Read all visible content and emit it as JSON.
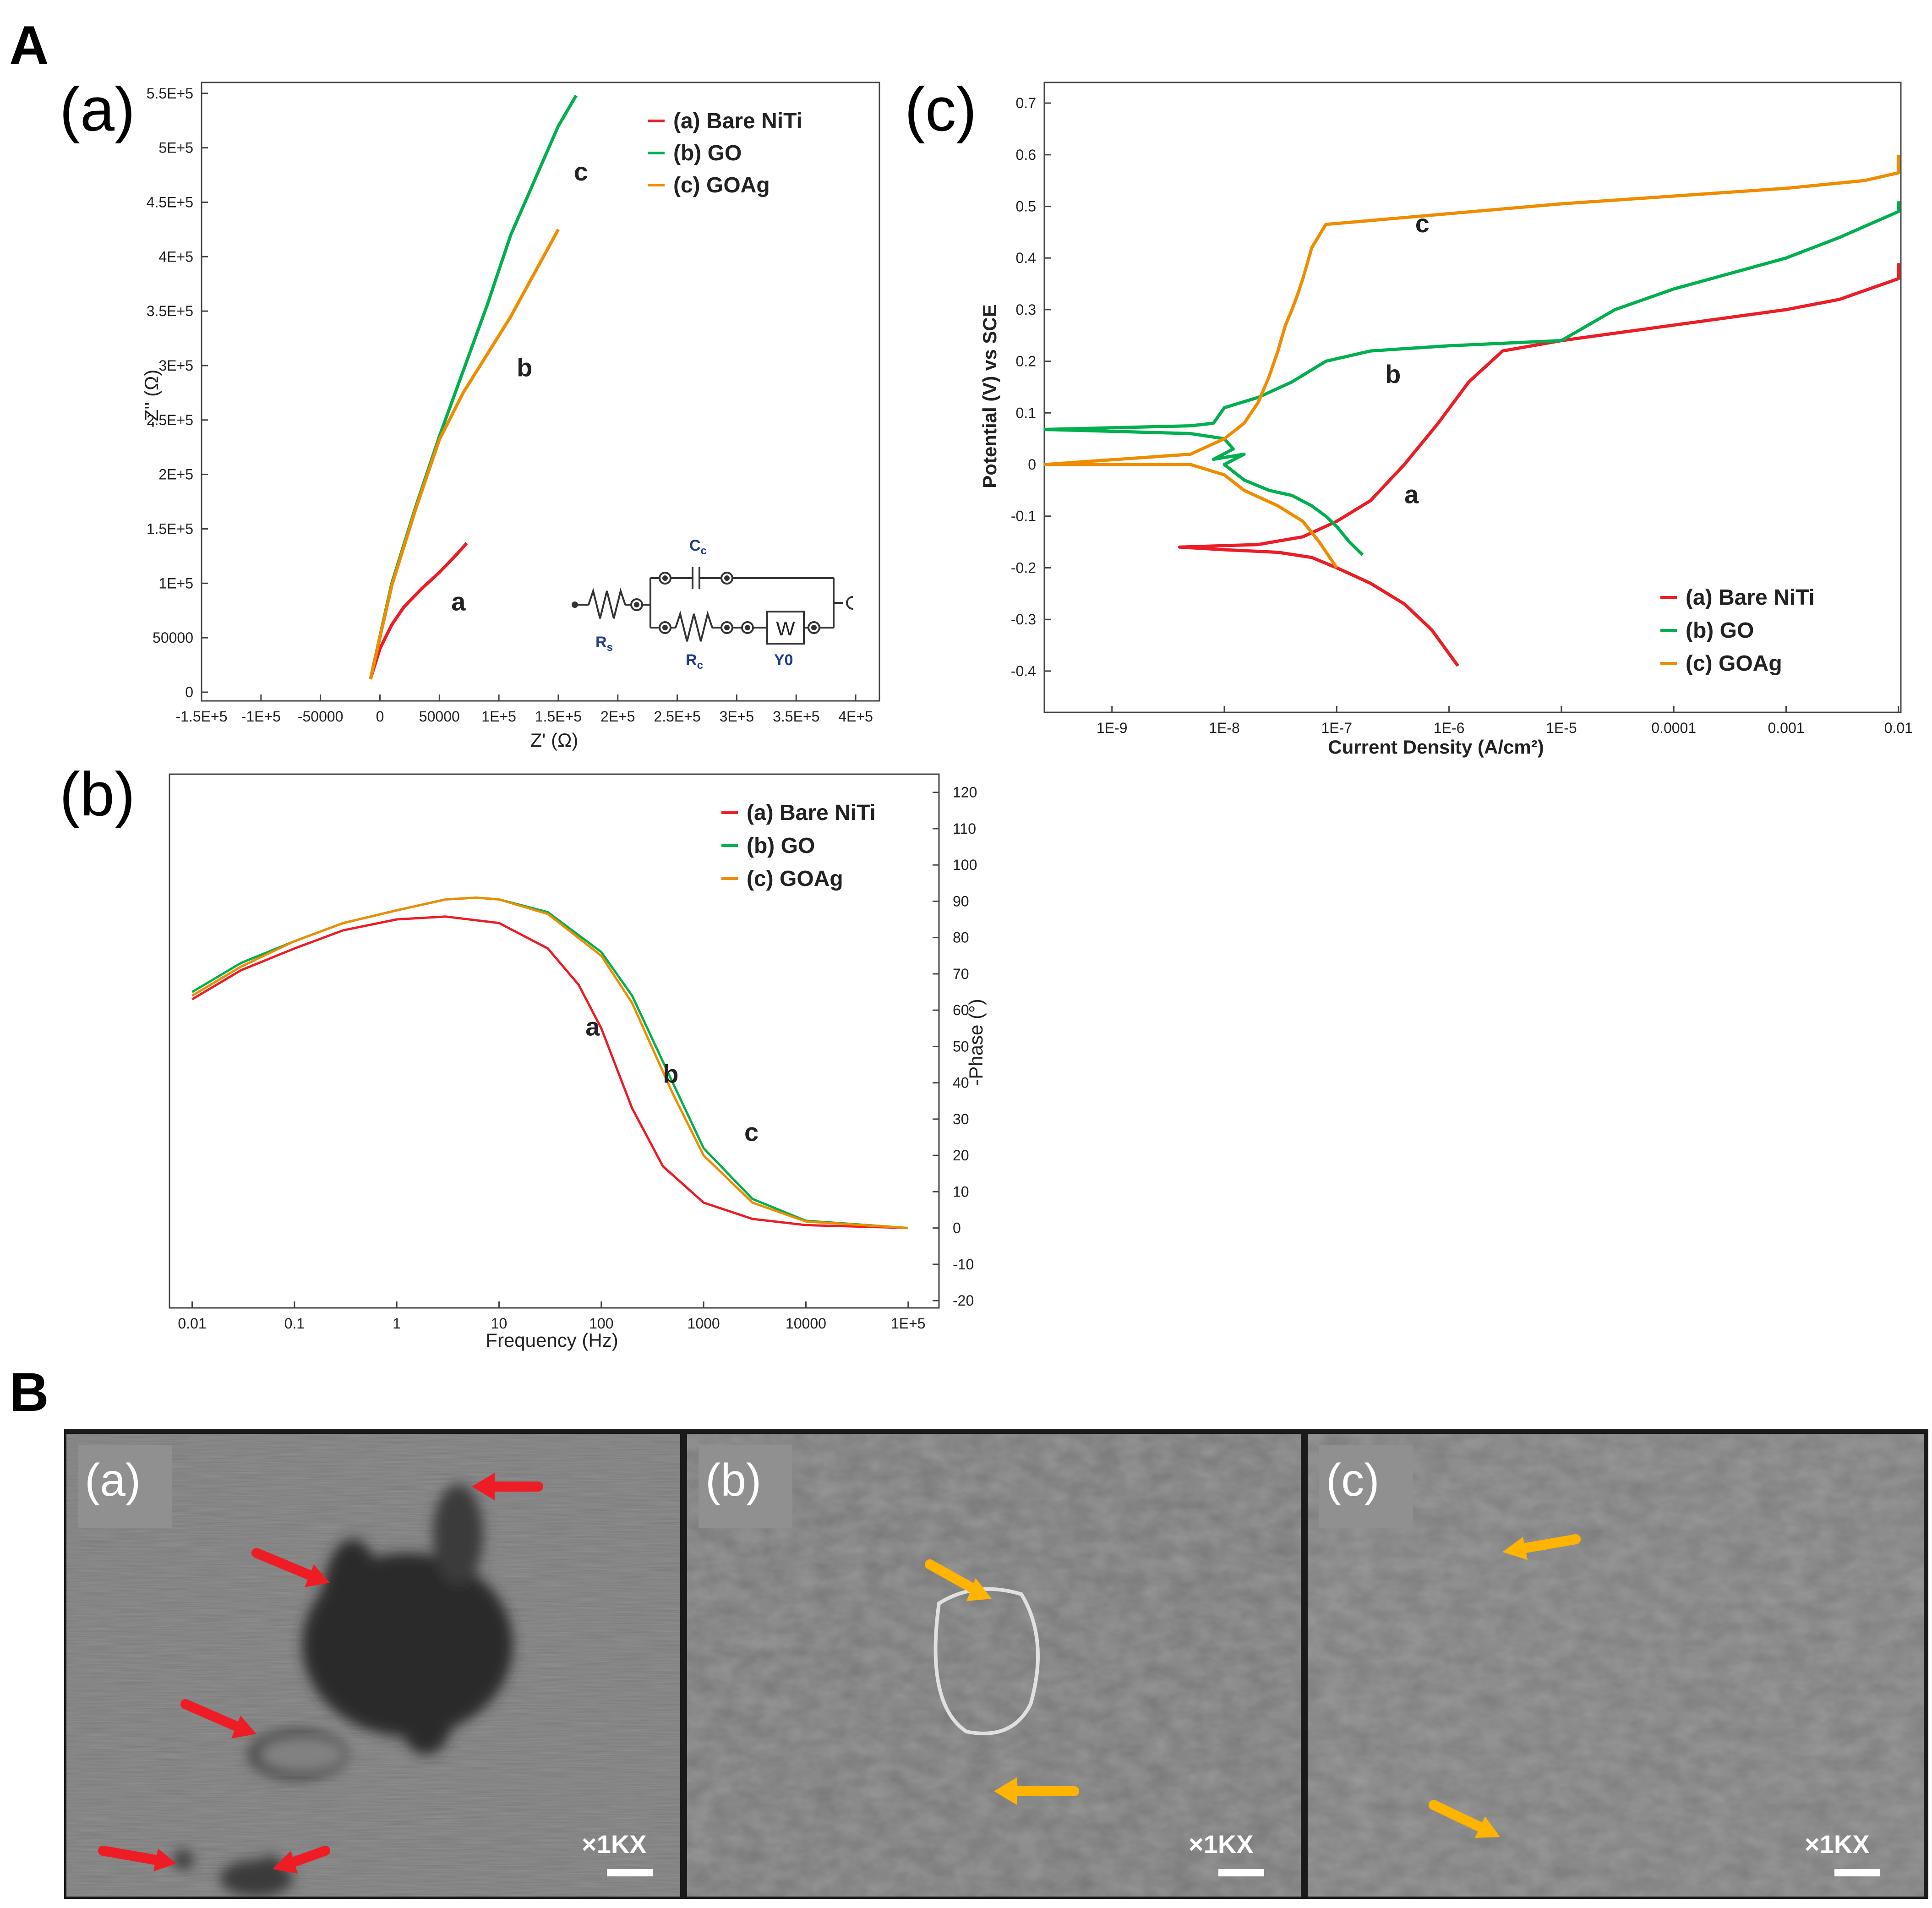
{
  "figure": {
    "panel_A_label": "A",
    "panel_B_label": "B"
  },
  "colors": {
    "a": "#ee1c25",
    "b": "#00b04f",
    "c": "#f08c00",
    "yellow_arrow": "#ffb400"
  },
  "chart_data": [
    {
      "id": "nyquist",
      "type": "line",
      "panel_label": "(a)",
      "xlabel": "Z' (Ω)",
      "ylabel": "-Z'' (Ω)",
      "xlim": [
        -150000,
        420000
      ],
      "ylim": [
        -8000,
        560000
      ],
      "x_ticks": [
        -150000,
        -100000,
        -50000,
        0,
        50000,
        100000,
        150000,
        200000,
        250000,
        300000,
        350000,
        400000
      ],
      "x_tick_labels": [
        "-1.5E+5",
        "-1E+5",
        "-50000",
        "0",
        "50000",
        "1E+5",
        "1.5E+5",
        "2E+5",
        "2.5E+5",
        "3E+5",
        "3.5E+5",
        "4E+5"
      ],
      "y_ticks": [
        0,
        50000,
        100000,
        150000,
        200000,
        250000,
        300000,
        350000,
        400000,
        450000,
        500000,
        550000
      ],
      "y_tick_labels": [
        "0",
        "50000",
        "1E+5",
        "1.5E+5",
        "2E+5",
        "2.5E+5",
        "3E+5",
        "3.5E+5",
        "4E+5",
        "4.5E+5",
        "5E+5",
        "5.5E+5"
      ],
      "legend": [
        "(a) Bare NiTi",
        "(b) GO",
        "(c) GOAg"
      ],
      "series": [
        {
          "key": "a",
          "name": "(a) Bare NiTi",
          "x": [
            -8000,
            0,
            10000,
            20000,
            35000,
            50000,
            65000,
            73000
          ],
          "y": [
            12000,
            40000,
            62000,
            78000,
            95000,
            110000,
            127000,
            137000
          ]
        },
        {
          "key": "b",
          "name": "(b) GO",
          "x": [
            -8000,
            10000,
            30000,
            50000,
            70000,
            90000,
            110000,
            130000,
            150000,
            165000
          ],
          "y": [
            12000,
            100000,
            170000,
            235000,
            295000,
            355000,
            420000,
            470000,
            520000,
            548000
          ]
        },
        {
          "key": "c",
          "name": "(c) GOAg",
          "x": [
            -8000,
            10000,
            30000,
            50000,
            70000,
            90000,
            110000,
            130000,
            150000
          ],
          "y": [
            12000,
            98000,
            168000,
            232000,
            275000,
            310000,
            345000,
            385000,
            425000
          ]
        }
      ],
      "curve_labels": [
        {
          "text": "a",
          "x": 60000,
          "y": 75000
        },
        {
          "text": "b",
          "x": 115000,
          "y": 290000
        },
        {
          "text": "c",
          "x": 163000,
          "y": 470000
        }
      ],
      "circuit": {
        "Cc": "C",
        "Cc_sub": "c",
        "Rs": "R",
        "Rs_sub": "s",
        "Rc": "R",
        "Rc_sub": "c",
        "W": "W",
        "Y0": "Y0"
      }
    },
    {
      "id": "bode",
      "type": "line",
      "panel_label": "(b)",
      "xlabel": "Frequency (Hz)",
      "ylabel": "-Phase (°)",
      "xscale": "log",
      "xlim": [
        0.006,
        200000
      ],
      "ylim": [
        -22,
        125
      ],
      "x_ticks": [
        0.01,
        0.1,
        1,
        10,
        100,
        1000,
        10000,
        100000
      ],
      "x_tick_labels": [
        "0.01",
        "0.1",
        "1",
        "10",
        "100",
        "1000",
        "10000",
        "1E+5"
      ],
      "y_ticks": [
        -20,
        -10,
        0,
        10,
        20,
        30,
        40,
        50,
        60,
        70,
        80,
        90,
        100,
        110,
        120
      ],
      "y_tick_labels": [
        "-20",
        "-10",
        "0",
        "10",
        "20",
        "30",
        "40",
        "50",
        "60",
        "70",
        "80",
        "90",
        "100",
        "110",
        "120"
      ],
      "legend": [
        "(a) Bare NiTi",
        "(b) GO",
        "(c) GOAg"
      ],
      "series": [
        {
          "key": "a",
          "name": "(a) Bare NiTi",
          "x": [
            0.01,
            0.03,
            0.1,
            0.3,
            1,
            3,
            10,
            30,
            60,
            100,
            200,
            400,
            1000,
            3000,
            10000,
            100000
          ],
          "y": [
            63,
            71,
            77,
            82,
            85,
            85.8,
            84,
            77,
            67,
            55,
            33,
            17,
            7,
            2.5,
            0.8,
            0
          ]
        },
        {
          "key": "b",
          "name": "(b) GO",
          "x": [
            0.01,
            0.03,
            0.1,
            0.3,
            1,
            3,
            6,
            10,
            30,
            100,
            200,
            500,
            1000,
            3000,
            10000,
            100000
          ],
          "y": [
            65,
            73,
            79,
            84,
            87.5,
            90.5,
            91,
            90.5,
            87,
            76,
            64,
            40,
            22,
            8,
            2,
            0
          ]
        },
        {
          "key": "c",
          "name": "(c) GOAg",
          "x": [
            0.01,
            0.03,
            0.1,
            0.3,
            1,
            3,
            6,
            10,
            30,
            100,
            200,
            500,
            1000,
            3000,
            10000,
            100000
          ],
          "y": [
            64,
            72,
            79,
            84,
            87.5,
            90.5,
            91,
            90.5,
            86.5,
            75,
            62,
            37,
            20,
            7,
            1.8,
            0
          ]
        }
      ],
      "curve_labels": [
        {
          "text": "a",
          "x": 70,
          "y": 53
        },
        {
          "text": "b",
          "x": 400,
          "y": 40
        },
        {
          "text": "c",
          "x": 2500,
          "y": 24
        }
      ]
    },
    {
      "id": "tafel",
      "type": "line",
      "panel_label": "(c)",
      "xlabel": "Current Density (A/cm²)",
      "ylabel": "Potential (V) vs SCE",
      "xscale": "log",
      "xlim": [
        2.5e-10,
        0.0105
      ],
      "ylim": [
        -0.48,
        0.74
      ],
      "x_ticks": [
        1e-09,
        1e-08,
        1e-07,
        1e-06,
        1e-05,
        0.0001,
        0.001,
        0.01
      ],
      "x_tick_labels": [
        "1E-9",
        "1E-8",
        "1E-7",
        "1E-6",
        "1E-5",
        "0.0001",
        "0.001",
        "0.01"
      ],
      "y_ticks": [
        -0.4,
        -0.3,
        -0.2,
        -0.1,
        0,
        0.1,
        0.2,
        0.3,
        0.4,
        0.5,
        0.6,
        0.7
      ],
      "y_tick_labels": [
        "-0.4",
        "-0.3",
        "-0.2",
        "-0.1",
        "0",
        "0.1",
        "0.2",
        "0.3",
        "0.4",
        "0.5",
        "0.6",
        "0.7"
      ],
      "legend": [
        "(a) Bare NiTi",
        "(b) GO",
        "(c) GOAg"
      ],
      "series": [
        {
          "key": "a",
          "name": "(a) Bare NiTi",
          "x": [
            1.2e-06,
            7e-07,
            4e-07,
            2e-07,
            1e-07,
            6e-08,
            3e-08,
            1e-08,
            4e-09,
            2e-08,
            5e-08,
            1e-07,
            2e-07,
            4e-07,
            8e-07,
            1.5e-06,
            3e-06,
            1e-05,
            0.0001,
            0.001,
            0.003,
            0.01,
            0.01
          ],
          "y": [
            -0.39,
            -0.32,
            -0.27,
            -0.23,
            -0.2,
            -0.18,
            -0.17,
            -0.165,
            -0.16,
            -0.155,
            -0.14,
            -0.11,
            -0.07,
            0.0,
            0.08,
            0.16,
            0.22,
            0.24,
            0.27,
            0.3,
            0.32,
            0.36,
            0.39
          ]
        },
        {
          "key": "b",
          "name": "(b) GO",
          "x": [
            1.7e-07,
            1.3e-07,
            1e-07,
            8e-08,
            6e-08,
            4e-08,
            2.5e-08,
            1.5e-08,
            1e-08,
            1.5e-08,
            8e-09,
            1.2e-08,
            1e-08,
            5e-09,
            2.5e-10,
            5e-09,
            8e-09,
            1e-08,
            2e-08,
            4e-08,
            8e-08,
            2e-07,
            1e-06,
            1e-05,
            3e-05,
            0.0001,
            0.001,
            0.003,
            0.01,
            0.01
          ],
          "y": [
            -0.175,
            -0.15,
            -0.12,
            -0.1,
            -0.08,
            -0.06,
            -0.05,
            -0.03,
            0.0,
            0.02,
            0.01,
            0.03,
            0.05,
            0.06,
            0.068,
            0.075,
            0.08,
            0.11,
            0.13,
            0.16,
            0.2,
            0.22,
            0.23,
            0.24,
            0.3,
            0.34,
            0.4,
            0.44,
            0.49,
            0.51
          ]
        },
        {
          "key": "c",
          "name": "(c) GOAg",
          "x": [
            1e-07,
            7e-08,
            5e-08,
            3e-08,
            1.5e-08,
            1e-08,
            5e-09,
            2.5e-10,
            5e-09,
            1e-08,
            1.5e-08,
            2e-08,
            2.5e-08,
            3e-08,
            3.5e-08,
            4e-08,
            4.5e-08,
            5e-08,
            6e-08,
            8e-08,
            1e-05,
            0.0001,
            0.001,
            0.005,
            0.01,
            0.01
          ],
          "y": [
            -0.2,
            -0.15,
            -0.11,
            -0.08,
            -0.05,
            -0.02,
            0.0,
            0.0,
            0.02,
            0.05,
            0.08,
            0.12,
            0.17,
            0.22,
            0.27,
            0.3,
            0.33,
            0.36,
            0.42,
            0.465,
            0.505,
            0.52,
            0.535,
            0.55,
            0.565,
            0.6
          ]
        }
      ],
      "curve_labels": [
        {
          "text": "a",
          "x": 4e-07,
          "y": -0.075
        },
        {
          "text": "b",
          "x": 2.7e-07,
          "y": 0.158
        },
        {
          "text": "c",
          "x": 5e-07,
          "y": 0.45
        }
      ]
    }
  ],
  "sem_panels": [
    {
      "tag": "(a)",
      "mag": "×1KX",
      "arrow_color_key": "a"
    },
    {
      "tag": "(b)",
      "mag": "×1KX",
      "arrow_color_key": "yellow_arrow"
    },
    {
      "tag": "(c)",
      "mag": "×1KX",
      "arrow_color_key": "yellow_arrow"
    }
  ]
}
